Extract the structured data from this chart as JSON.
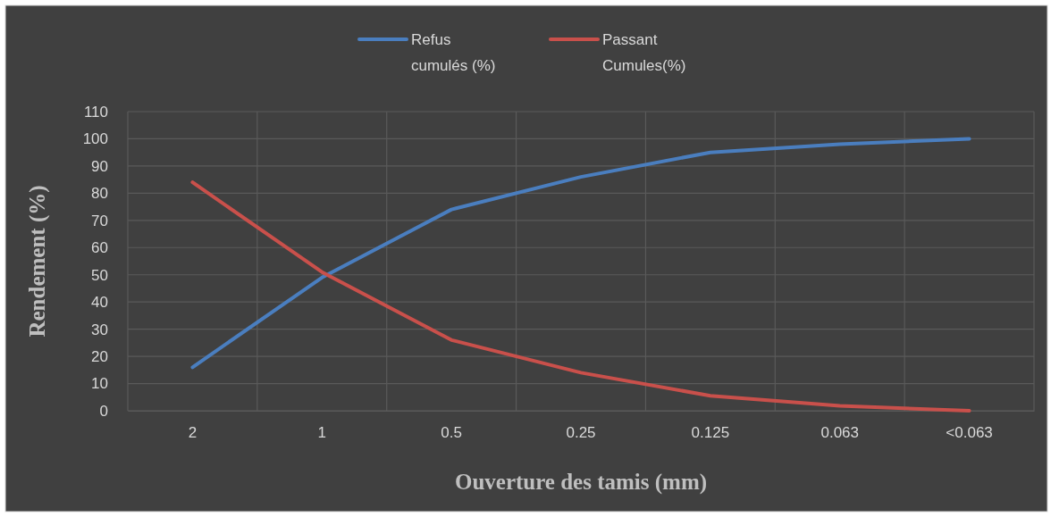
{
  "chart_data": {
    "type": "line",
    "xlabel": "Ouverture des tamis (mm)",
    "ylabel": "Rendement (%)",
    "categories": [
      "2",
      "1",
      "0.5",
      "0.25",
      "0.125",
      "0.063",
      "<0.063"
    ],
    "series": [
      {
        "name": "Refus cumulés (%)",
        "color": "#4a7ebf",
        "values": [
          16,
          49,
          74,
          86,
          95,
          98,
          100
        ]
      },
      {
        "name": "Passant Cumules(%)",
        "color": "#c9504b",
        "values": [
          84,
          51,
          26,
          14,
          5.5,
          1.8,
          0
        ]
      }
    ],
    "ylim": [
      0,
      110
    ],
    "yticks": [
      0,
      10,
      20,
      30,
      40,
      50,
      60,
      70,
      80,
      90,
      100,
      110
    ],
    "grid": true,
    "legend": "top",
    "marker": "none",
    "line_style": "solid"
  }
}
